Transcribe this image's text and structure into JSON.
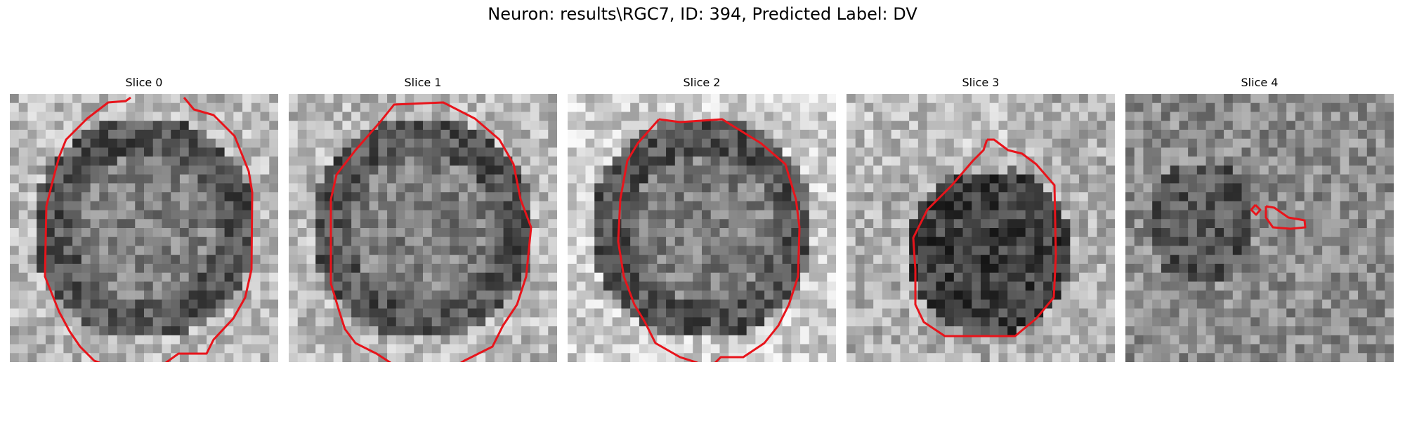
{
  "figure": {
    "title": "Neuron: results\\RGC7, ID: 394, Predicted Label: DV"
  },
  "colors": {
    "contour": "#e8141b",
    "background": "#ffffff"
  },
  "slices": [
    {
      "title": "Slice 0",
      "seed": 11,
      "blob": "ring",
      "contour_segments": 2
    },
    {
      "title": "Slice 1",
      "seed": 23,
      "blob": "ring",
      "contour_segments": 2
    },
    {
      "title": "Slice 2",
      "seed": 37,
      "blob": "ring-halo",
      "contour_segments": 2
    },
    {
      "title": "Slice 3",
      "seed": 41,
      "blob": "dark-lower",
      "contour_segments": 1
    },
    {
      "title": "Slice 4",
      "seed": 59,
      "blob": "noise",
      "contour_segments": 2
    }
  ]
}
